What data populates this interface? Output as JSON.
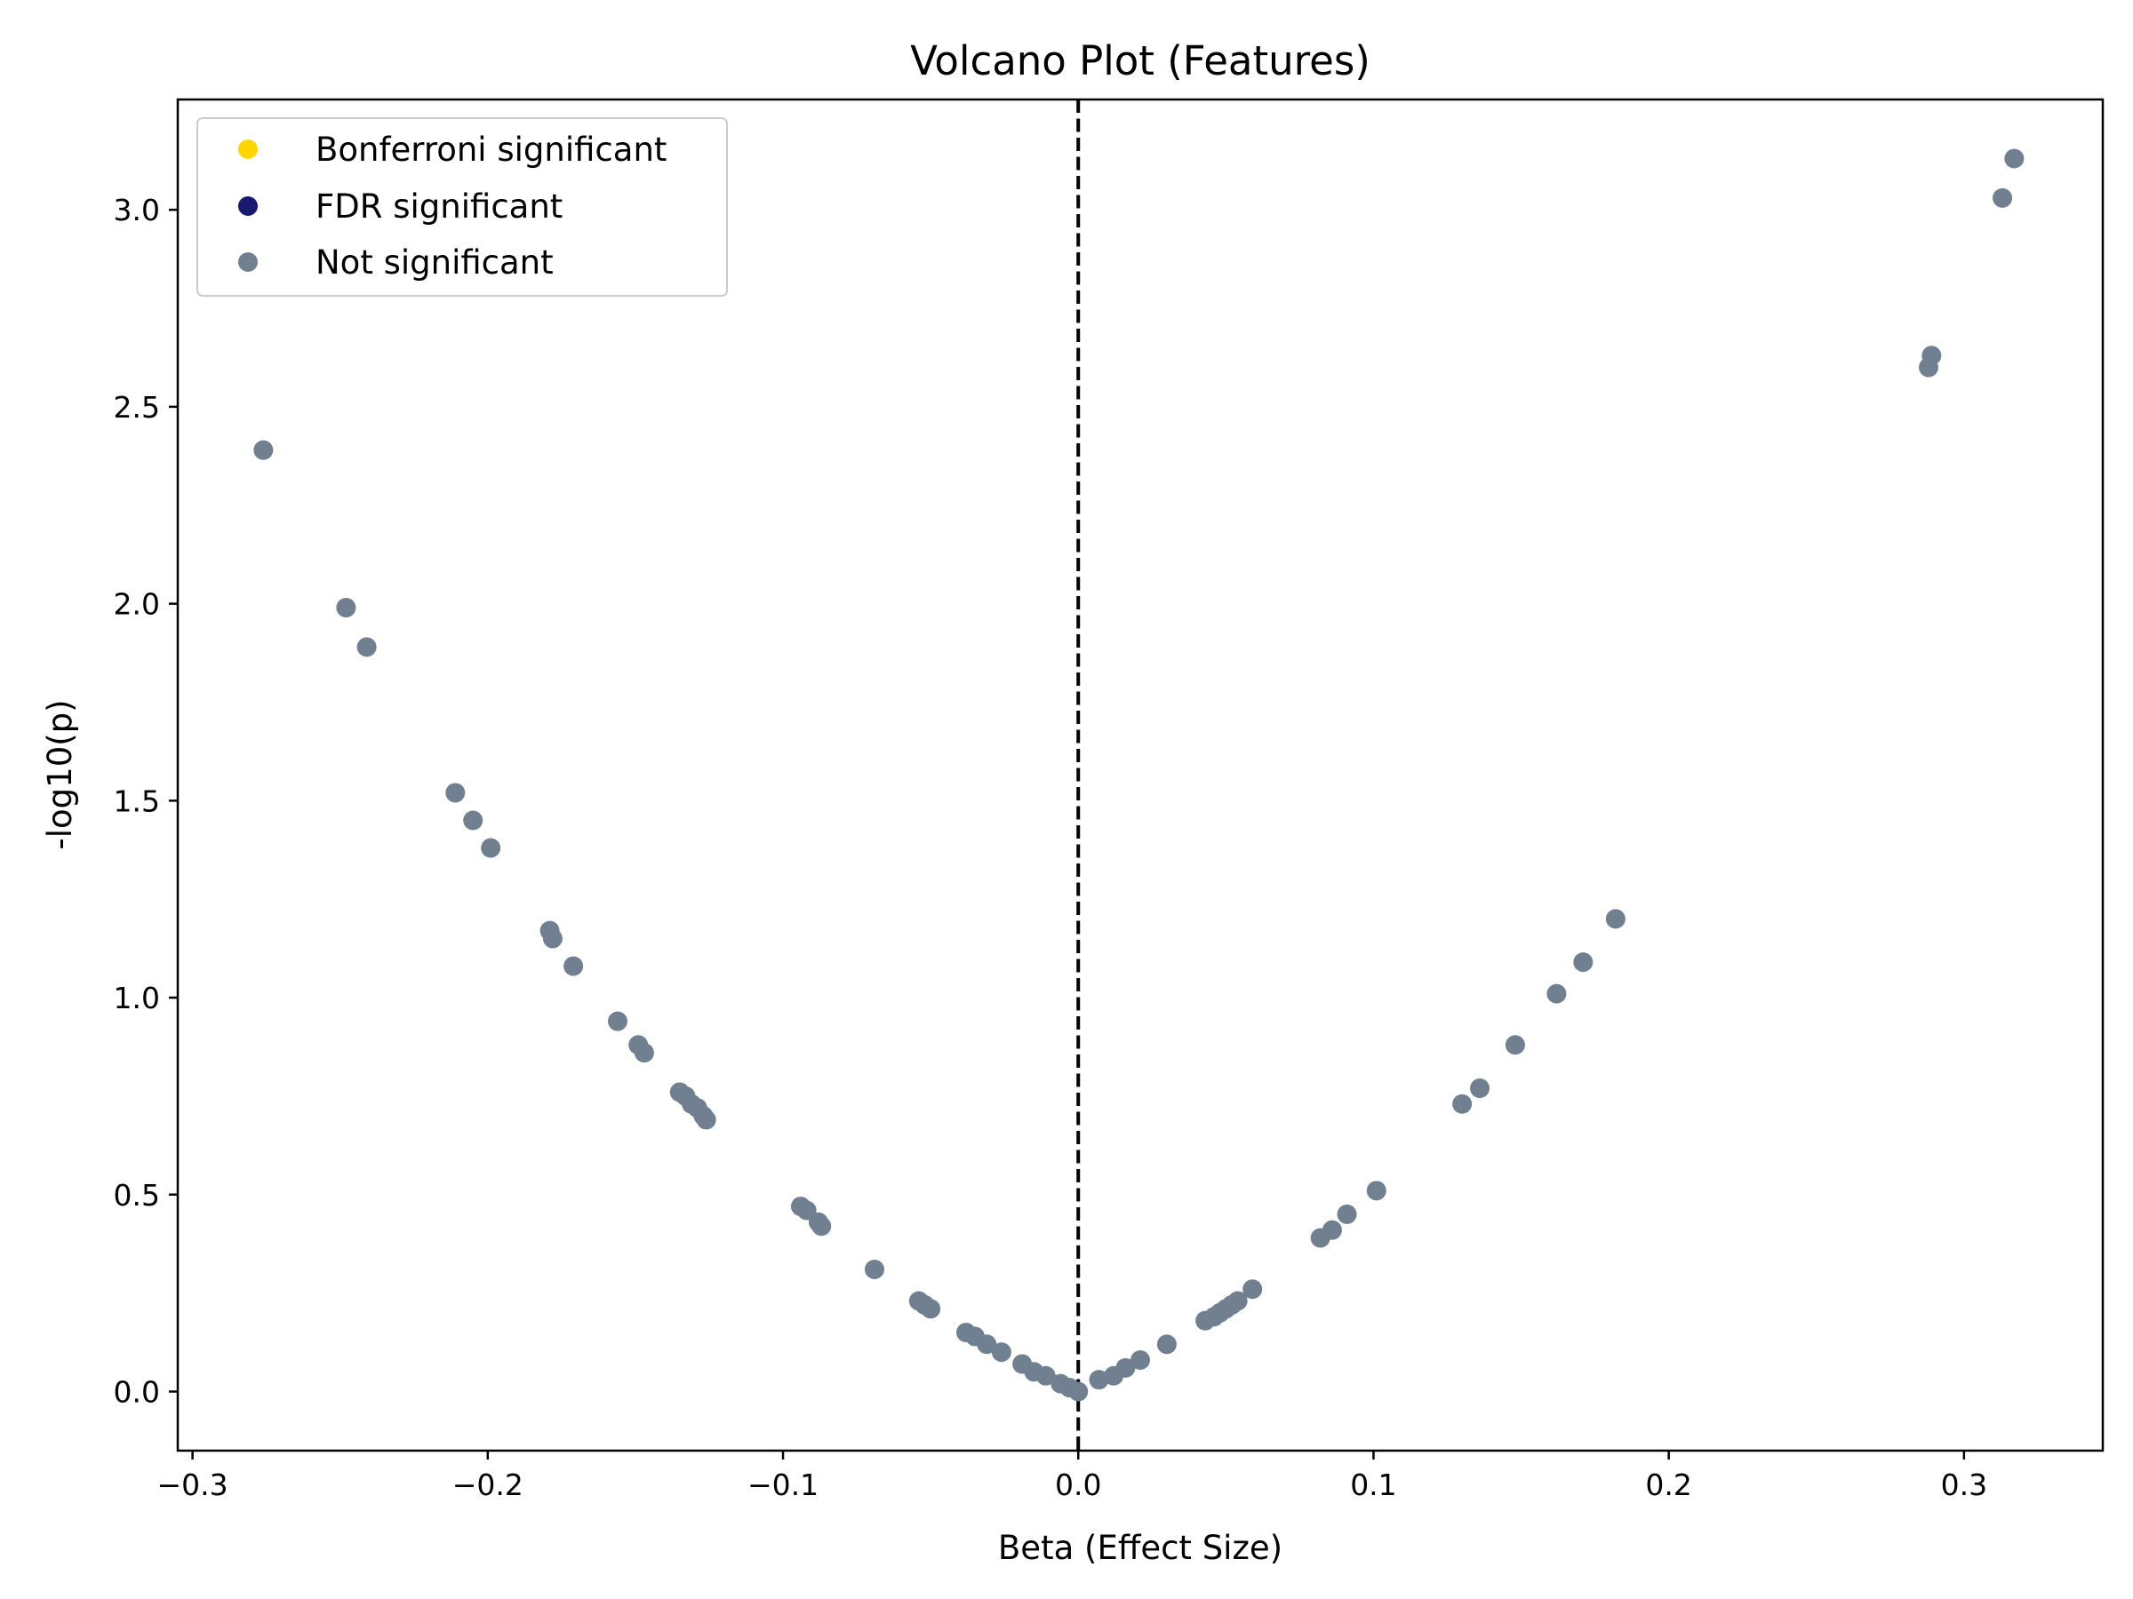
{
  "chart_data": {
    "type": "scatter",
    "title": "Volcano Plot (Features)",
    "xlabel": "Beta (Effect Size)",
    "ylabel": "-log10(p)",
    "xlim": [
      -0.305,
      0.347
    ],
    "ylim": [
      -0.15,
      3.28
    ],
    "xticks": [
      -0.3,
      -0.2,
      -0.1,
      0.0,
      0.1,
      0.2,
      0.3
    ],
    "xtick_labels": [
      "−0.3",
      "−0.2",
      "−0.1",
      "0.0",
      "0.1",
      "0.2",
      "0.3"
    ],
    "yticks": [
      0.0,
      0.5,
      1.0,
      1.5,
      2.0,
      2.5,
      3.0
    ],
    "ytick_labels": [
      "0.0",
      "0.5",
      "1.0",
      "1.5",
      "2.0",
      "2.5",
      "3.0"
    ],
    "grid": false,
    "legend_position": "top-left",
    "reference_line": {
      "x": 0.0,
      "style": "dashed",
      "color": "#000000"
    },
    "series": [
      {
        "name": "Bonferroni significant",
        "color": "#FFD700",
        "points": []
      },
      {
        "name": "FDR significant",
        "color": "#191970",
        "points": []
      },
      {
        "name": "Not significant",
        "color": "#708090",
        "points": [
          [
            -0.276,
            2.39
          ],
          [
            -0.248,
            1.99
          ],
          [
            -0.241,
            1.89
          ],
          [
            -0.211,
            1.52
          ],
          [
            -0.205,
            1.45
          ],
          [
            -0.199,
            1.38
          ],
          [
            -0.179,
            1.17
          ],
          [
            -0.178,
            1.15
          ],
          [
            -0.171,
            1.08
          ],
          [
            -0.156,
            0.94
          ],
          [
            -0.149,
            0.88
          ],
          [
            -0.147,
            0.86
          ],
          [
            -0.135,
            0.76
          ],
          [
            -0.133,
            0.75
          ],
          [
            -0.131,
            0.73
          ],
          [
            -0.129,
            0.72
          ],
          [
            -0.127,
            0.7
          ],
          [
            -0.126,
            0.69
          ],
          [
            -0.094,
            0.47
          ],
          [
            -0.092,
            0.46
          ],
          [
            -0.088,
            0.43
          ],
          [
            -0.087,
            0.42
          ],
          [
            -0.069,
            0.31
          ],
          [
            -0.054,
            0.23
          ],
          [
            -0.052,
            0.22
          ],
          [
            -0.05,
            0.21
          ],
          [
            -0.038,
            0.15
          ],
          [
            -0.035,
            0.14
          ],
          [
            -0.031,
            0.12
          ],
          [
            -0.026,
            0.1
          ],
          [
            -0.019,
            0.07
          ],
          [
            -0.015,
            0.05
          ],
          [
            -0.011,
            0.04
          ],
          [
            -0.006,
            0.02
          ],
          [
            -0.003,
            0.01
          ],
          [
            0.0,
            0.0
          ],
          [
            0.007,
            0.03
          ],
          [
            0.012,
            0.04
          ],
          [
            0.016,
            0.06
          ],
          [
            0.021,
            0.08
          ],
          [
            0.03,
            0.12
          ],
          [
            0.043,
            0.18
          ],
          [
            0.046,
            0.19
          ],
          [
            0.048,
            0.2
          ],
          [
            0.05,
            0.21
          ],
          [
            0.052,
            0.22
          ],
          [
            0.054,
            0.23
          ],
          [
            0.059,
            0.26
          ],
          [
            0.082,
            0.39
          ],
          [
            0.086,
            0.41
          ],
          [
            0.091,
            0.45
          ],
          [
            0.101,
            0.51
          ],
          [
            0.13,
            0.73
          ],
          [
            0.136,
            0.77
          ],
          [
            0.148,
            0.88
          ],
          [
            0.162,
            1.01
          ],
          [
            0.171,
            1.09
          ],
          [
            0.182,
            1.2
          ],
          [
            0.288,
            2.6
          ],
          [
            0.289,
            2.63
          ],
          [
            0.313,
            3.03
          ],
          [
            0.317,
            3.13
          ]
        ]
      }
    ]
  }
}
